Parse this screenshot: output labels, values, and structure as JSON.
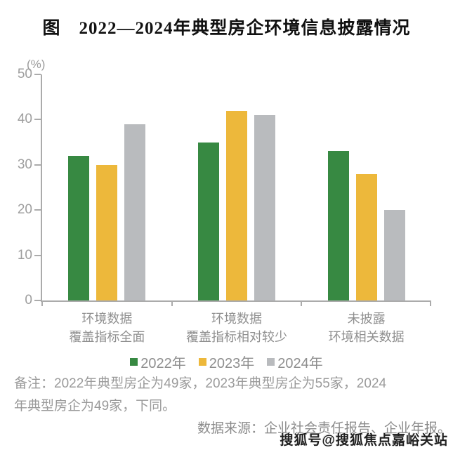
{
  "title": "图　2022—2024年典型房企环境信息披露情况",
  "chart_data": {
    "type": "bar",
    "title": "2022—2024年典型房企环境信息披露情况",
    "unit_label": "(%)",
    "categories": [
      "环境数据\n覆盖指标全面",
      "环境数据\n覆盖指标相对较少",
      "未披露\n环境相关数据"
    ],
    "series": [
      {
        "name": "2022年",
        "color": "#378942",
        "values": [
          32,
          35,
          33
        ]
      },
      {
        "name": "2023年",
        "color": "#EDB83B",
        "values": [
          30,
          42,
          28
        ]
      },
      {
        "name": "2024年",
        "color": "#B9BBBE",
        "values": [
          39,
          41,
          20
        ]
      }
    ],
    "ylim": [
      0,
      50
    ],
    "ytick_step": 10,
    "grid": false,
    "legend_position": "bottom"
  },
  "notes": {
    "remark": "备注：2022年典型房企为49家，2023年典型房企为55家，2024\n年典型房企为49家，下同。",
    "source": "数据来源：企业社会责任报告、企业年报。"
  },
  "watermark": "搜狐号@搜狐焦点嘉峪关站"
}
